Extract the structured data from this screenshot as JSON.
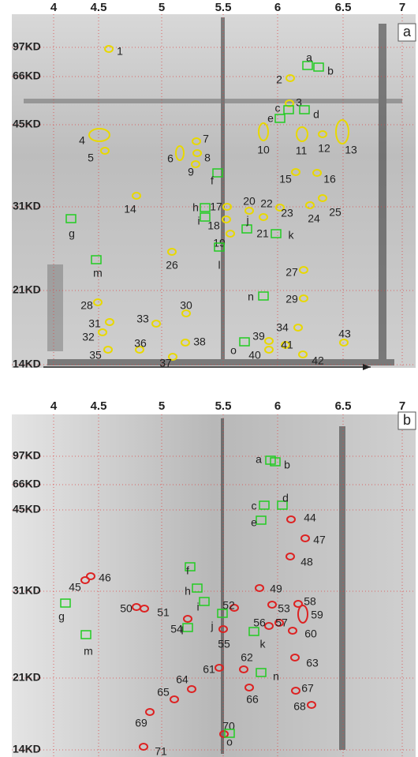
{
  "arrow": true,
  "panels": [
    {
      "letter": "a",
      "ph_labels": [
        "4",
        "4.5",
        "5",
        "5.5",
        "6",
        "6.5",
        "7"
      ],
      "mw_labels": [
        "97KD",
        "66KD",
        "45KD",
        "31KD",
        "21KD",
        "14KD"
      ],
      "spots": [
        "1",
        "2",
        "3",
        "4",
        "5",
        "6",
        "7",
        "8",
        "9",
        "10",
        "11",
        "12",
        "13",
        "14",
        "15",
        "16",
        "17",
        "18",
        "19",
        "20",
        "21",
        "22",
        "23",
        "24",
        "25",
        "26",
        "27",
        "28",
        "29",
        "30",
        "31",
        "32",
        "33",
        "34",
        "35",
        "36",
        "37",
        "38",
        "39",
        "40",
        "41",
        "42",
        "43",
        "a",
        "b",
        "c",
        "d",
        "e",
        "f",
        "g",
        "h",
        "i",
        "j",
        "k",
        "l",
        "m",
        "n",
        "o"
      ]
    },
    {
      "letter": "b",
      "ph_labels": [
        "4",
        "4.5",
        "5",
        "5.5",
        "6",
        "6.5",
        "7"
      ],
      "mw_labels": [
        "97KD",
        "66KD",
        "45KD",
        "31KD",
        "21KD",
        "14KD"
      ],
      "spots": [
        "44",
        "45",
        "46",
        "47",
        "48",
        "49",
        "50",
        "51",
        "52",
        "53",
        "54",
        "55",
        "56",
        "57",
        "58",
        "59",
        "60",
        "61",
        "62",
        "63",
        "64",
        "65",
        "66",
        "67",
        "68",
        "69",
        "70",
        "71",
        "a",
        "b",
        "c",
        "d",
        "e",
        "f",
        "g",
        "h",
        "i",
        "j",
        "k",
        "l",
        "m",
        "n",
        "o"
      ]
    }
  ]
}
